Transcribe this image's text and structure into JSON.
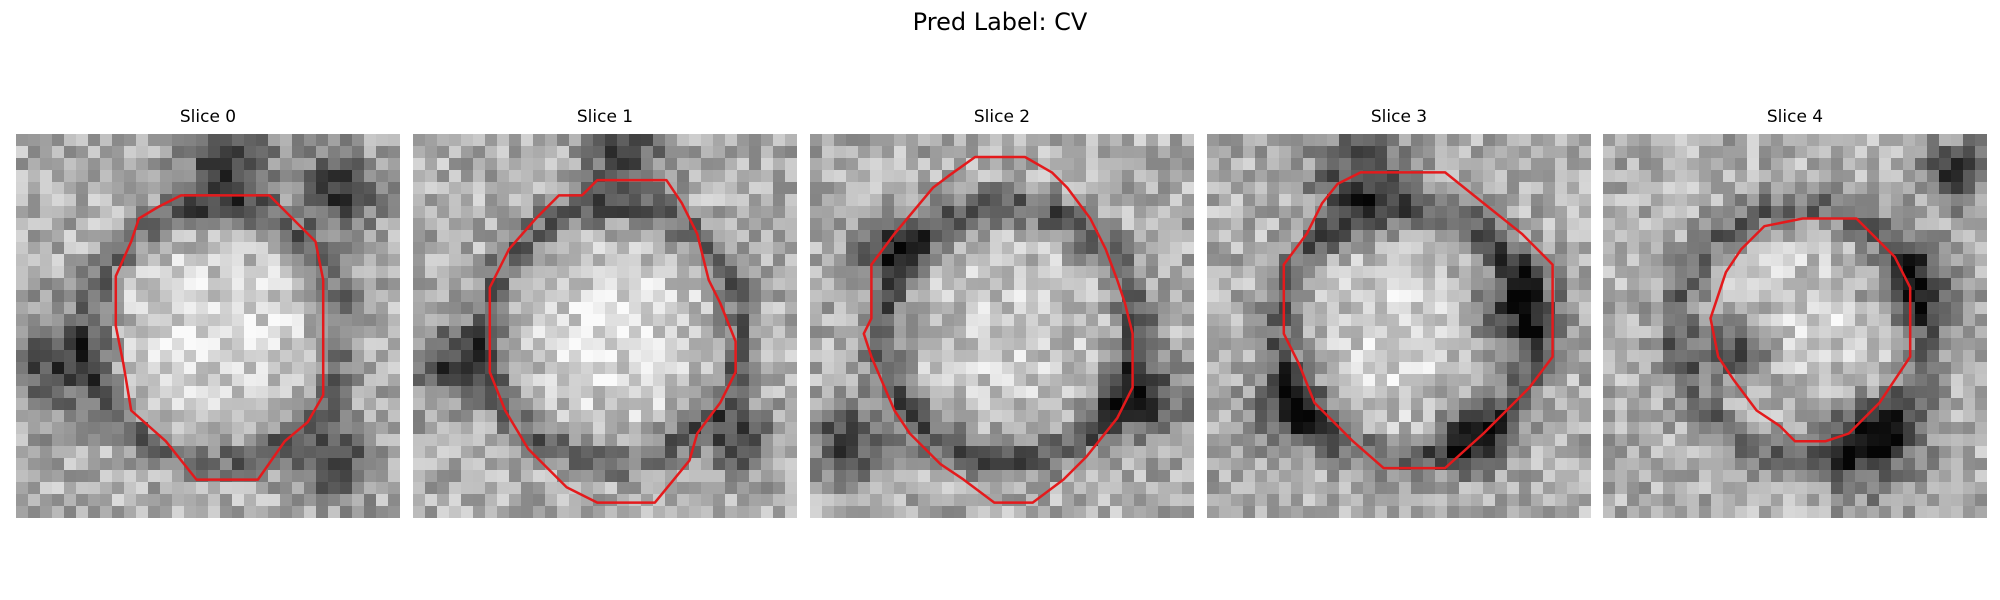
{
  "figure": {
    "title": "Pred Label: CV",
    "panels": [
      {
        "title": "Slice 0",
        "seed": 11,
        "blob": 0.86,
        "ring": 0.3,
        "dark_spots": [
          [
            0.55,
            0.08,
            0.12
          ],
          [
            0.85,
            0.15,
            0.1
          ],
          [
            0.1,
            0.6,
            0.12
          ],
          [
            0.82,
            0.85,
            0.1
          ]
        ],
        "contour": [
          [
            0.43,
            0.16
          ],
          [
            0.66,
            0.16
          ],
          [
            0.78,
            0.28
          ],
          [
            0.8,
            0.38
          ],
          [
            0.8,
            0.68
          ],
          [
            0.76,
            0.75
          ],
          [
            0.7,
            0.8
          ],
          [
            0.63,
            0.9
          ],
          [
            0.47,
            0.9
          ],
          [
            0.39,
            0.8
          ],
          [
            0.3,
            0.72
          ],
          [
            0.28,
            0.6
          ],
          [
            0.26,
            0.5
          ],
          [
            0.26,
            0.37
          ],
          [
            0.3,
            0.28
          ],
          [
            0.32,
            0.22
          ],
          [
            0.37,
            0.19
          ]
        ]
      },
      {
        "title": "Slice 1",
        "seed": 23,
        "blob": 0.92,
        "ring": 0.32,
        "dark_spots": [
          [
            0.55,
            0.06,
            0.1
          ],
          [
            0.1,
            0.6,
            0.1
          ],
          [
            0.85,
            0.8,
            0.08
          ]
        ],
        "contour": [
          [
            0.48,
            0.12
          ],
          [
            0.66,
            0.12
          ],
          [
            0.7,
            0.18
          ],
          [
            0.74,
            0.26
          ],
          [
            0.77,
            0.38
          ],
          [
            0.8,
            0.44
          ],
          [
            0.84,
            0.54
          ],
          [
            0.84,
            0.62
          ],
          [
            0.8,
            0.7
          ],
          [
            0.74,
            0.78
          ],
          [
            0.72,
            0.85
          ],
          [
            0.63,
            0.96
          ],
          [
            0.48,
            0.96
          ],
          [
            0.4,
            0.92
          ],
          [
            0.3,
            0.82
          ],
          [
            0.24,
            0.72
          ],
          [
            0.2,
            0.62
          ],
          [
            0.2,
            0.4
          ],
          [
            0.25,
            0.3
          ],
          [
            0.32,
            0.22
          ],
          [
            0.38,
            0.16
          ],
          [
            0.44,
            0.16
          ]
        ]
      },
      {
        "title": "Slice 2",
        "seed": 37,
        "blob": 0.55,
        "ring": 0.38,
        "dark_spots": [
          [
            0.1,
            0.8,
            0.1
          ],
          [
            0.88,
            0.7,
            0.1
          ],
          [
            0.2,
            0.3,
            0.08
          ]
        ],
        "contour": [
          [
            0.43,
            0.06
          ],
          [
            0.56,
            0.06
          ],
          [
            0.63,
            0.1
          ],
          [
            0.67,
            0.14
          ],
          [
            0.73,
            0.22
          ],
          [
            0.77,
            0.3
          ],
          [
            0.8,
            0.38
          ],
          [
            0.82,
            0.44
          ],
          [
            0.84,
            0.52
          ],
          [
            0.84,
            0.66
          ],
          [
            0.8,
            0.74
          ],
          [
            0.72,
            0.84
          ],
          [
            0.66,
            0.9
          ],
          [
            0.58,
            0.96
          ],
          [
            0.48,
            0.96
          ],
          [
            0.4,
            0.9
          ],
          [
            0.34,
            0.86
          ],
          [
            0.26,
            0.78
          ],
          [
            0.22,
            0.72
          ],
          [
            0.16,
            0.58
          ],
          [
            0.14,
            0.52
          ],
          [
            0.16,
            0.48
          ],
          [
            0.16,
            0.34
          ],
          [
            0.22,
            0.26
          ],
          [
            0.27,
            0.2
          ],
          [
            0.32,
            0.14
          ],
          [
            0.36,
            0.11
          ]
        ]
      },
      {
        "title": "Slice 3",
        "seed": 53,
        "blob": 0.8,
        "ring": 0.34,
        "dark_spots": [
          [
            0.4,
            0.12,
            0.12
          ],
          [
            0.8,
            0.45,
            0.12
          ],
          [
            0.7,
            0.78,
            0.1
          ],
          [
            0.22,
            0.72,
            0.1
          ]
        ],
        "contour": [
          [
            0.34,
            0.13
          ],
          [
            0.4,
            0.1
          ],
          [
            0.62,
            0.1
          ],
          [
            0.72,
            0.18
          ],
          [
            0.82,
            0.26
          ],
          [
            0.9,
            0.34
          ],
          [
            0.9,
            0.58
          ],
          [
            0.84,
            0.66
          ],
          [
            0.72,
            0.78
          ],
          [
            0.62,
            0.87
          ],
          [
            0.46,
            0.87
          ],
          [
            0.38,
            0.8
          ],
          [
            0.28,
            0.7
          ],
          [
            0.24,
            0.6
          ],
          [
            0.2,
            0.52
          ],
          [
            0.2,
            0.34
          ],
          [
            0.26,
            0.26
          ],
          [
            0.3,
            0.18
          ]
        ]
      },
      {
        "title": "Slice 4",
        "seed": 71,
        "blob": 0.7,
        "ring": 0.3,
        "dark_spots": [
          [
            0.7,
            0.8,
            0.14
          ],
          [
            0.8,
            0.4,
            0.1
          ],
          [
            0.34,
            0.56,
            0.1
          ],
          [
            0.92,
            0.1,
            0.08
          ]
        ],
        "contour": [
          [
            0.42,
            0.24
          ],
          [
            0.52,
            0.22
          ],
          [
            0.66,
            0.22
          ],
          [
            0.76,
            0.32
          ],
          [
            0.8,
            0.4
          ],
          [
            0.8,
            0.58
          ],
          [
            0.76,
            0.64
          ],
          [
            0.72,
            0.7
          ],
          [
            0.64,
            0.78
          ],
          [
            0.58,
            0.8
          ],
          [
            0.5,
            0.8
          ],
          [
            0.46,
            0.76
          ],
          [
            0.4,
            0.72
          ],
          [
            0.34,
            0.64
          ],
          [
            0.3,
            0.58
          ],
          [
            0.28,
            0.48
          ],
          [
            0.32,
            0.36
          ],
          [
            0.36,
            0.3
          ]
        ]
      }
    ],
    "contour_color": "#e41a1c"
  }
}
